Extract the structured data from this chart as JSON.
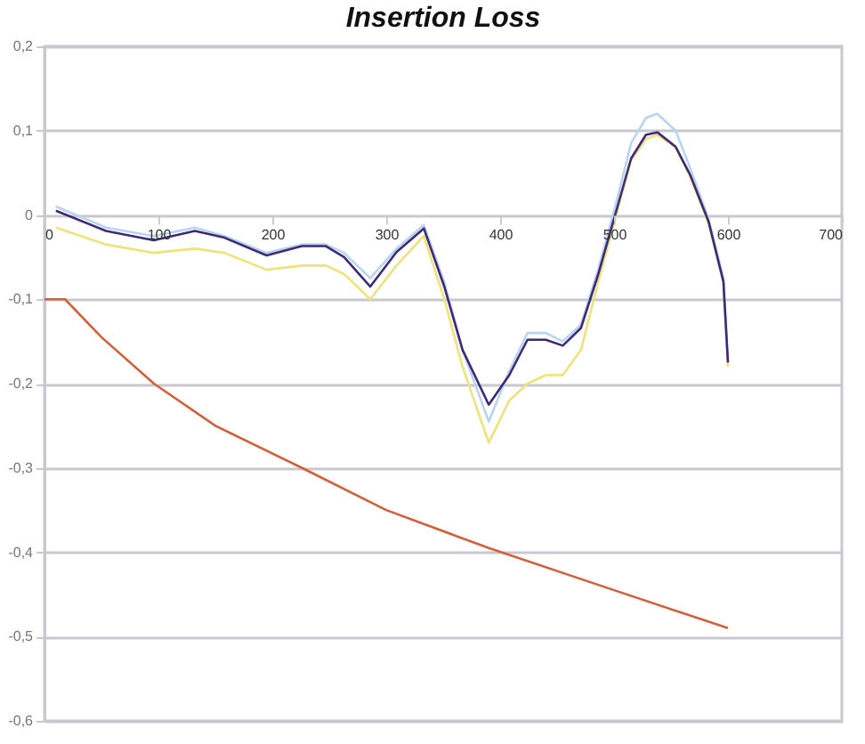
{
  "chart_data": {
    "type": "line",
    "title": "Insertion Loss",
    "xlim": [
      0,
      700
    ],
    "xticks": [
      0,
      100,
      200,
      300,
      400,
      500,
      600,
      700
    ],
    "ylim": [
      -0.6,
      0.2
    ],
    "yticks": [
      {
        "value": 0.2,
        "label": "0,2"
      },
      {
        "value": 0.1,
        "label": "0,1"
      },
      0,
      {
        "value": -0.1,
        "label": "-0,1"
      },
      {
        "value": -0.2,
        "label": "-0,2"
      },
      {
        "value": -0.3,
        "label": "-0,3"
      },
      {
        "value": -0.4,
        "label": "-0,4"
      },
      {
        "value": -0.5,
        "label": "-0,5"
      },
      {
        "value": -0.6,
        "label": "-0,6"
      }
    ],
    "grid": "y",
    "legend": false,
    "marker": "none",
    "line_style": "solid",
    "series": [
      {
        "color": "#f0e27a",
        "x": [
          10,
          54,
          96,
          132,
          158,
          195,
          226,
          247,
          263,
          286,
          309,
          333,
          351,
          367,
          390,
          408,
          424,
          440,
          455,
          471,
          486,
          502,
          515,
          528,
          538,
          554,
          567,
          583,
          596,
          600
        ],
        "values": [
          -0.015,
          -0.035,
          -0.045,
          -0.04,
          -0.045,
          -0.065,
          -0.06,
          -0.06,
          -0.07,
          -0.1,
          -0.06,
          -0.025,
          -0.1,
          -0.18,
          -0.27,
          -0.22,
          -0.2,
          -0.19,
          -0.19,
          -0.16,
          -0.08,
          0,
          0.065,
          0.09,
          0.095,
          0.08,
          0.045,
          -0.01,
          -0.08,
          -0.18
        ]
      },
      {
        "color": "#b8d4ee",
        "x": [
          10,
          54,
          96,
          132,
          158,
          195,
          226,
          247,
          263,
          286,
          309,
          333,
          351,
          367,
          390,
          408,
          424,
          440,
          455,
          471,
          486,
          502,
          515,
          528,
          538,
          554,
          567,
          583,
          596,
          600
        ],
        "values": [
          0.01,
          -0.015,
          -0.025,
          -0.015,
          -0.025,
          -0.045,
          -0.035,
          -0.035,
          -0.045,
          -0.075,
          -0.04,
          -0.012,
          -0.08,
          -0.16,
          -0.245,
          -0.185,
          -0.14,
          -0.14,
          -0.15,
          -0.13,
          -0.065,
          0.015,
          0.085,
          0.115,
          0.12,
          0.1,
          0.055,
          -0.005,
          -0.075,
          -0.175
        ]
      },
      {
        "color": "#3d2a7a",
        "x": [
          10,
          54,
          96,
          132,
          158,
          195,
          226,
          247,
          263,
          286,
          309,
          333,
          351,
          367,
          390,
          408,
          424,
          440,
          455,
          471,
          486,
          502,
          515,
          528,
          538,
          554,
          567,
          583,
          596,
          600
        ],
        "values": [
          0.005,
          -0.019,
          -0.03,
          -0.019,
          -0.027,
          -0.048,
          -0.037,
          -0.037,
          -0.05,
          -0.085,
          -0.044,
          -0.016,
          -0.085,
          -0.16,
          -0.225,
          -0.19,
          -0.148,
          -0.148,
          -0.155,
          -0.134,
          -0.071,
          0.005,
          0.067,
          0.095,
          0.098,
          0.081,
          0.047,
          -0.008,
          -0.079,
          -0.175
        ]
      },
      {
        "color": "#d2603a",
        "x": [
          0,
          18,
          50,
          96,
          150,
          226,
          300,
          390,
          500,
          600
        ],
        "values": [
          -0.1,
          -0.1,
          -0.145,
          -0.2,
          -0.25,
          -0.3,
          -0.35,
          -0.395,
          -0.445,
          -0.49
        ]
      }
    ]
  }
}
